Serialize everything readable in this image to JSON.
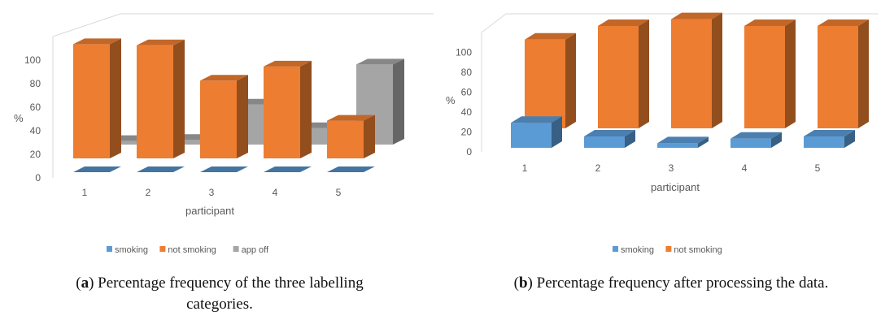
{
  "colors": {
    "smoking": "#5b9bd5",
    "not_smoking": "#ed7d31",
    "app_off": "#a5a5a5",
    "axis_text": "#595959",
    "grid": "#d9d9d9"
  },
  "captions": {
    "a": {
      "tag": "a",
      "text": ") Percentage frequency of the three labelling categories."
    },
    "b": {
      "tag": "b",
      "text": ") Percentage frequency after processing the data."
    }
  },
  "chart_data": [
    {
      "id": "a",
      "type": "bar",
      "style": "3d-clustered-depth",
      "categories": [
        "1",
        "2",
        "3",
        "4",
        "5"
      ],
      "series": [
        {
          "name": "smoking",
          "color": "#5b9bd5",
          "values": [
            0,
            0,
            0,
            0,
            0
          ]
        },
        {
          "name": "not smoking",
          "color": "#ed7d31",
          "values": [
            97,
            96,
            66,
            78,
            32
          ]
        },
        {
          "name": "app off",
          "color": "#a5a5a5",
          "values": [
            3,
            4,
            34,
            14,
            68
          ]
        }
      ],
      "xlabel": "participant",
      "ylabel": "%",
      "yticks": [
        0,
        20,
        40,
        60,
        80,
        100
      ],
      "ylim": [
        0,
        100
      ],
      "legend": "bottom"
    },
    {
      "id": "b",
      "type": "bar",
      "style": "3d-clustered-depth",
      "categories": [
        "1",
        "2",
        "3",
        "4",
        "5"
      ],
      "series": [
        {
          "name": "smoking",
          "color": "#5b9bd5",
          "values": [
            22,
            10,
            4,
            8,
            10
          ]
        },
        {
          "name": "not smoking",
          "color": "#ed7d31",
          "values": [
            78,
            90,
            96,
            90,
            90
          ]
        }
      ],
      "xlabel": "participant",
      "ylabel": "%",
      "yticks": [
        0,
        20,
        40,
        60,
        80,
        100
      ],
      "ylim": [
        0,
        100
      ],
      "legend": "bottom"
    }
  ]
}
